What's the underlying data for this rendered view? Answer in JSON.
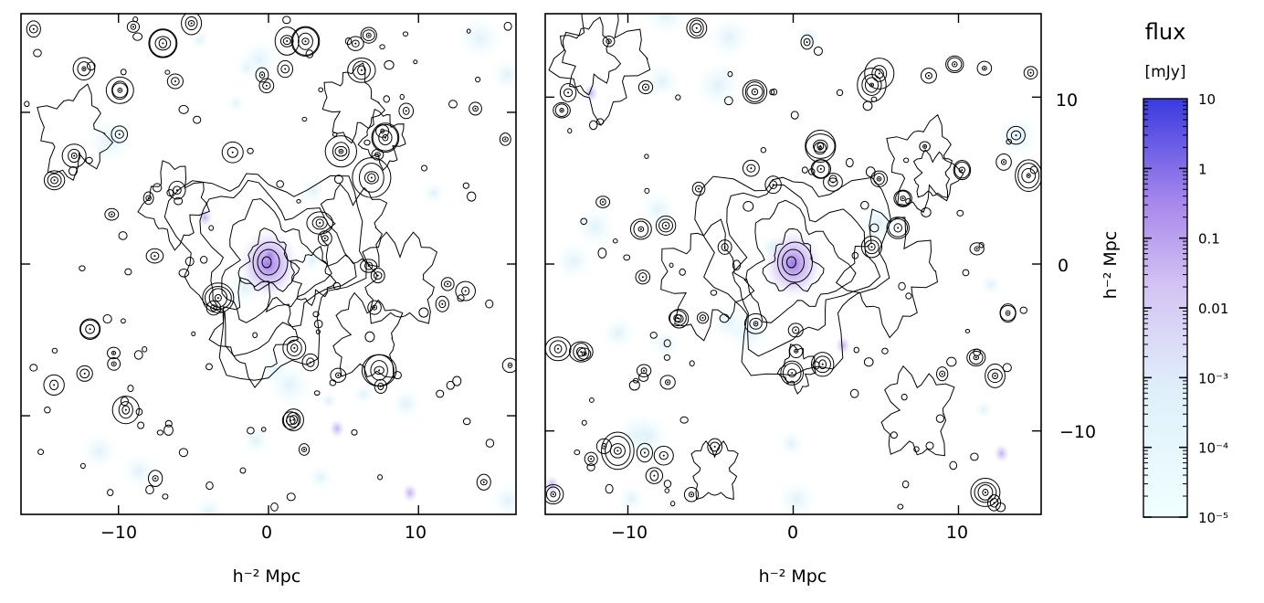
{
  "chart_data": [
    {
      "type": "contour",
      "panel": "left",
      "xlabel": "h⁻² Mpc",
      "ylabel": "",
      "xlim": [
        -16.5,
        16.5
      ],
      "ylim": [
        -16.5,
        16.5
      ],
      "x_ticks": [
        -10,
        0,
        10
      ],
      "x_tick_labels": [
        "−10",
        "0",
        "10"
      ],
      "central_peak": {
        "x": 0,
        "y": 0
      },
      "contour_levels": 4
    },
    {
      "type": "contour",
      "panel": "right",
      "xlabel": "h⁻² Mpc",
      "ylabel": "h⁻² Mpc",
      "xlim": [
        -15,
        15
      ],
      "ylim": [
        -15,
        15
      ],
      "x_ticks": [
        -10,
        0,
        10
      ],
      "x_tick_labels": [
        "−10",
        "0",
        "10"
      ],
      "y_ticks": [
        10,
        0,
        -10
      ],
      "y_tick_labels": [
        "10",
        "0",
        "−10"
      ],
      "central_peak": {
        "x": 0,
        "y": 0
      },
      "contour_levels": 4
    }
  ],
  "colorbar": {
    "title": "flux",
    "unit": "[mJy]",
    "scale": "log",
    "range": [
      1e-05,
      10
    ],
    "tick_values": [
      10,
      1,
      0.1,
      0.01,
      0.001,
      0.0001,
      1e-05
    ],
    "tick_labels": [
      "10",
      "1",
      "0.1",
      "0.01",
      "10⁻³",
      "10⁻⁴",
      "10⁻⁵"
    ],
    "color_low": "#f0ffff",
    "color_mid": "#c8a8f0",
    "color_high": "#3a3ae0"
  }
}
